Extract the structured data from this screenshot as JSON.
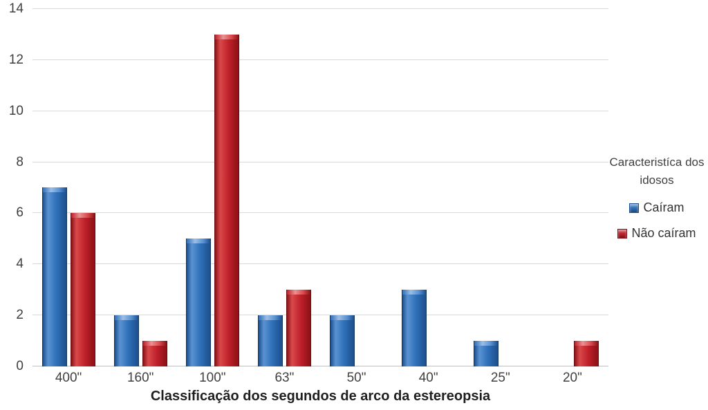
{
  "chart_data": {
    "type": "bar",
    "title": "",
    "xlabel": "Classificação dos segundos de arco da estereopsia",
    "ylabel": "",
    "categories": [
      "400\"",
      "160\"",
      "100\"",
      "63\"",
      "50\"",
      "40\"",
      "25\"",
      "20\""
    ],
    "series": [
      {
        "name": "Caíram",
        "values": [
          7,
          2,
          5,
          2,
          2,
          3,
          1,
          0
        ],
        "color": "#2f70b8",
        "color_light": "#5a92d2",
        "color_dark": "#1c4f8c",
        "color_border": "#14365c"
      },
      {
        "name": "Não caíram",
        "values": [
          6,
          1,
          13,
          3,
          0,
          0,
          0,
          1
        ],
        "color": "#c0202a",
        "color_light": "#d94a4c",
        "color_dark": "#8a1216",
        "color_border": "#6b0b0f"
      }
    ],
    "ylim": [
      0,
      14
    ],
    "yticks": [
      0,
      2,
      4,
      6,
      8,
      10,
      12,
      14
    ],
    "grid": "horizontal-only",
    "legend": {
      "title": "Caracteristíca dos idosos",
      "position": "right"
    },
    "colors": {
      "gridline": "#d9d9d9",
      "axis_line": "#bfbfbf",
      "tick_text": "#3f3f3f",
      "background": "#ffffff"
    }
  }
}
